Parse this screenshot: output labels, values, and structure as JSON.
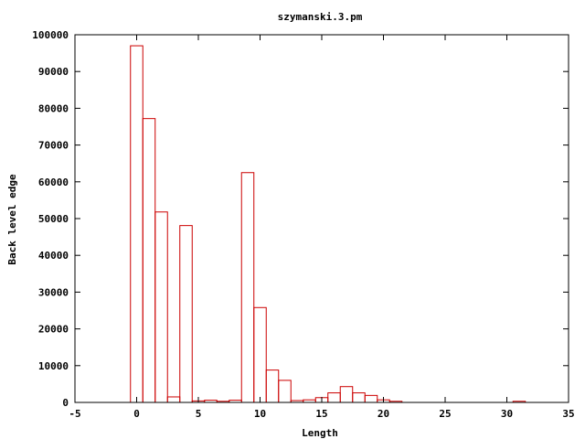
{
  "chart_data": {
    "type": "bar",
    "title": "szymanski.3.pm",
    "xlabel": "Length",
    "ylabel": "Back level edge",
    "xlim": [
      -5,
      35
    ],
    "ylim": [
      0,
      100000
    ],
    "x_ticks": [
      -5,
      0,
      5,
      10,
      15,
      20,
      25,
      30,
      35
    ],
    "y_ticks": [
      0,
      10000,
      20000,
      30000,
      40000,
      50000,
      60000,
      70000,
      80000,
      90000,
      100000
    ],
    "bar_width": 1,
    "bar_color": "#cc0000",
    "grid": false,
    "series": [
      {
        "x": [
          0,
          1,
          2,
          3,
          4,
          5,
          6,
          7,
          8,
          9,
          10,
          11,
          12,
          13,
          14,
          15,
          16,
          17,
          18,
          19,
          20,
          21,
          31
        ],
        "values": [
          97000,
          77200,
          51800,
          1500,
          48100,
          400,
          600,
          300,
          600,
          62500,
          25800,
          8800,
          6000,
          500,
          700,
          1300,
          2600,
          4300,
          2600,
          1900,
          700,
          300,
          300
        ]
      }
    ]
  }
}
